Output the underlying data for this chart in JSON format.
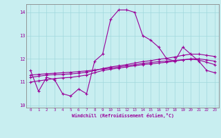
{
  "xlabel": "Windchill (Refroidissement éolien,°C)",
  "background_color": "#c8eef0",
  "line_color": "#990099",
  "x_hours": [
    0,
    1,
    2,
    3,
    4,
    5,
    6,
    7,
    8,
    9,
    10,
    11,
    12,
    13,
    14,
    15,
    16,
    17,
    18,
    19,
    20,
    21,
    22,
    23
  ],
  "series1": [
    11.5,
    10.6,
    11.2,
    11.1,
    10.5,
    10.4,
    10.7,
    10.5,
    11.9,
    12.2,
    13.7,
    14.1,
    14.1,
    14.0,
    13.0,
    12.8,
    12.5,
    12.0,
    11.9,
    12.5,
    12.2,
    11.9,
    11.5,
    11.4
  ],
  "series2": [
    11.0,
    11.05,
    11.1,
    11.15,
    11.18,
    11.2,
    11.25,
    11.3,
    11.4,
    11.5,
    11.55,
    11.6,
    11.65,
    11.7,
    11.75,
    11.78,
    11.82,
    11.85,
    11.9,
    11.95,
    12.0,
    12.0,
    11.95,
    11.9
  ],
  "series3": [
    11.2,
    11.25,
    11.3,
    11.32,
    11.33,
    11.35,
    11.38,
    11.42,
    11.5,
    11.58,
    11.65,
    11.7,
    11.75,
    11.82,
    11.88,
    11.92,
    11.98,
    12.02,
    12.08,
    12.15,
    12.2,
    12.2,
    12.15,
    12.1
  ],
  "series4": [
    11.3,
    11.33,
    11.36,
    11.38,
    11.4,
    11.42,
    11.45,
    11.48,
    11.52,
    11.56,
    11.6,
    11.65,
    11.7,
    11.75,
    11.8,
    11.84,
    11.88,
    11.9,
    11.93,
    11.96,
    11.98,
    11.95,
    11.85,
    11.75
  ],
  "ylim": [
    9.9,
    14.35
  ],
  "yticks": [
    10,
    11,
    12,
    13,
    14
  ],
  "xticks": [
    0,
    1,
    2,
    3,
    4,
    5,
    6,
    7,
    8,
    9,
    10,
    11,
    12,
    13,
    14,
    15,
    16,
    17,
    18,
    19,
    20,
    21,
    22,
    23
  ]
}
